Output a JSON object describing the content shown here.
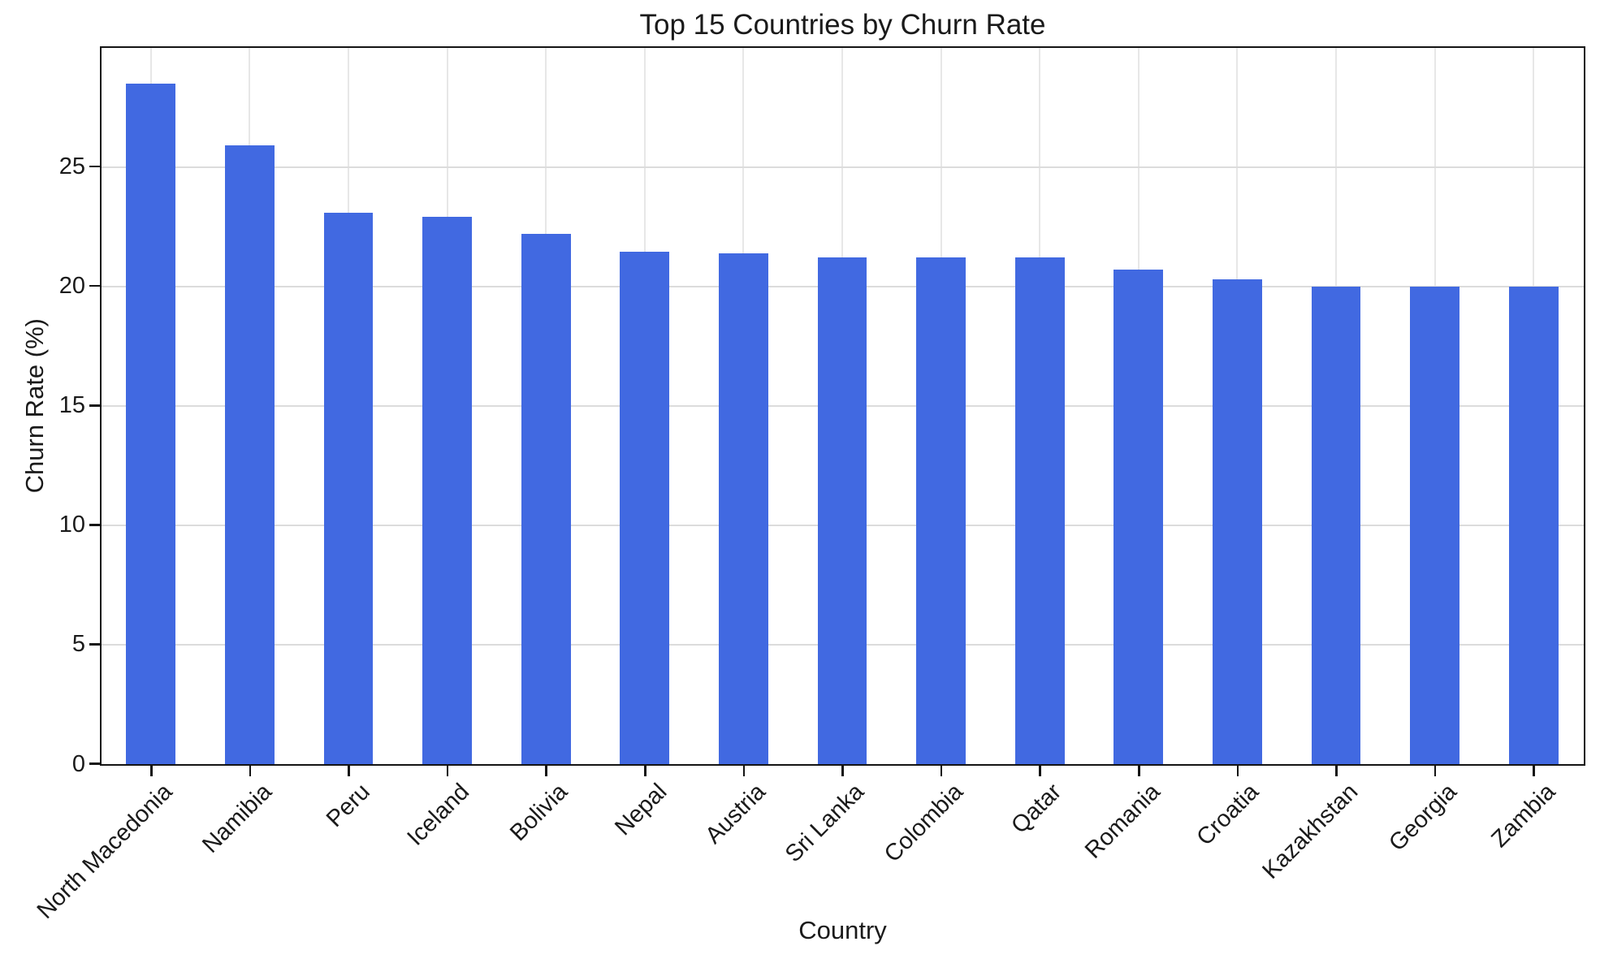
{
  "chart_data": {
    "type": "bar",
    "title": "Top 15 Countries by Churn Rate",
    "xlabel": "Country",
    "ylabel": "Churn Rate (%)",
    "categories": [
      "North Macedonia",
      "Namibia",
      "Peru",
      "Iceland",
      "Bolivia",
      "Nepal",
      "Austria",
      "Sri Lanka",
      "Colombia",
      "Qatar",
      "Romania",
      "Croatia",
      "Kazakhstan",
      "Georgia",
      "Zambia"
    ],
    "values": [
      28.5,
      25.9,
      23.1,
      22.9,
      22.2,
      21.45,
      21.4,
      21.2,
      21.2,
      21.2,
      20.7,
      20.3,
      20.0,
      20.0,
      20.0
    ],
    "ylim": [
      0,
      29.95
    ],
    "yticks": [
      0,
      5,
      10,
      15,
      20,
      25
    ],
    "bar_color": "#4169E1",
    "bar_width_fraction": 0.5,
    "grid": true,
    "legend": false
  }
}
